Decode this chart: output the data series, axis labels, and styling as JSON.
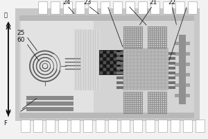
{
  "fig_w": 3.0,
  "fig_h": 2.0,
  "dpi": 100,
  "bg": "#f2f2f2",
  "board_outer": "#c8c8c8",
  "board_inner": "#d4d4d4",
  "pad_white": "#ffffff",
  "light_region": "#e2e2e2",
  "stripe_region": "#d8d8d8",
  "dark_checker": "#282828",
  "checker_light": "#505050",
  "checker_dark": "#181818",
  "grid_region": "#b8b8b8",
  "dark_sq": "#888888",
  "dark_sq2": "#909090",
  "hatch_dot_light": "#c8c8c8",
  "hatch_dot_dark": "#aaaaaa",
  "bar_color": "#888888",
  "spiral_color": "#606060",
  "vbar_color": "#909090",
  "line_color": "#222222",
  "text_color": "#111111",
  "arrow_color": "#111111"
}
